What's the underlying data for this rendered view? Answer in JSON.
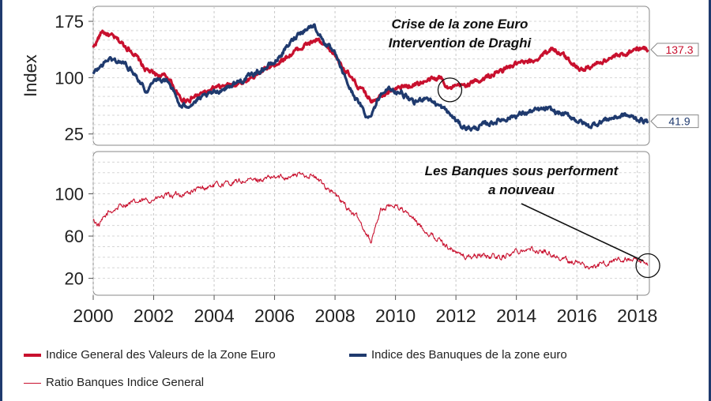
{
  "chart_data": [
    {
      "type": "line",
      "ylabel": "Index",
      "ylim": [
        10,
        195
      ],
      "yticks": [
        25,
        100,
        175
      ],
      "xlim": [
        2000,
        2018.4
      ],
      "grid": true,
      "series": [
        {
          "name": "Indice General des Valeurs de la Zone Euro",
          "color": "#c8102e",
          "x": [
            2000,
            2000.3,
            2000.8,
            2001.3,
            2001.7,
            2002,
            2002.5,
            2002.9,
            2003.2,
            2004,
            2005,
            2006,
            2007,
            2007.4,
            2008,
            2008.6,
            2009.2,
            2009.7,
            2010.3,
            2011,
            2011.5,
            2011.8,
            2012.3,
            2013,
            2014,
            2014.5,
            2015.2,
            2015.7,
            2016.2,
            2017,
            2017.5,
            2018,
            2018.35
          ],
          "values": [
            140,
            162,
            150,
            135,
            112,
            105,
            100,
            70,
            72,
            85,
            95,
            118,
            143,
            150,
            130,
            95,
            70,
            82,
            88,
            95,
            100,
            85,
            90,
            100,
            118,
            120,
            140,
            125,
            110,
            125,
            130,
            140,
            137.3
          ]
        },
        {
          "name": "Indice des Banuques de la zone euro",
          "color": "#1f3a6e",
          "x": [
            2000,
            2000.5,
            2001,
            2001.4,
            2001.8,
            2002,
            2002.5,
            2002.9,
            2003.2,
            2004,
            2005,
            2006,
            2006.8,
            2007.3,
            2007.6,
            2008,
            2008.5,
            2009.1,
            2009.6,
            2010.2,
            2010.6,
            2011,
            2011.7,
            2012.2,
            2012.6,
            2013,
            2014,
            2014.5,
            2015,
            2015.8,
            2016.4,
            2017,
            2017.6,
            2018,
            2018.35
          ],
          "values": [
            105,
            125,
            120,
            105,
            80,
            100,
            95,
            60,
            65,
            80,
            98,
            120,
            160,
            170,
            150,
            130,
            85,
            45,
            85,
            80,
            65,
            75,
            55,
            35,
            32,
            38,
            50,
            55,
            58,
            48,
            35,
            45,
            50,
            45,
            41.9
          ]
        }
      ],
      "end_labels": [
        "137.3",
        "41.9"
      ],
      "annotation": {
        "lines": [
          "Crise de la zone Euro",
          "Intervention de Draghi"
        ],
        "at": [
          2011.8,
          90
        ]
      }
    },
    {
      "type": "line",
      "ylim": [
        4,
        140
      ],
      "yticks": [
        20,
        60,
        100
      ],
      "xlim": [
        2000,
        2018.4
      ],
      "xticks": [
        "2000",
        "2002",
        "2004",
        "2006",
        "2008",
        "2010",
        "2012",
        "2014",
        "2016",
        "2018"
      ],
      "grid": true,
      "series": [
        {
          "name": "Ratio Banques Indice General",
          "color": "#c8102e",
          "x": [
            2000,
            2000.2,
            2000.5,
            2001,
            2001.5,
            2002,
            2002.5,
            2003,
            2004,
            2005,
            2006,
            2006.8,
            2007.2,
            2007.8,
            2008.3,
            2008.8,
            2009.2,
            2009.5,
            2010,
            2010.5,
            2011,
            2011.5,
            2012,
            2012.3,
            2012.8,
            2013.5,
            2014.2,
            2015,
            2015.5,
            2016,
            2016.5,
            2017,
            2017.5,
            2018,
            2018.35
          ],
          "values": [
            75,
            70,
            82,
            90,
            92,
            95,
            98,
            100,
            108,
            112,
            115,
            118,
            118,
            105,
            90,
            75,
            55,
            85,
            90,
            78,
            65,
            55,
            45,
            40,
            42,
            40,
            48,
            45,
            38,
            35,
            30,
            35,
            38,
            35,
            32
          ],
          "ma": true
        }
      ],
      "annotation": {
        "lines": [
          "Les Banques sous performent",
          "a nouveau"
        ],
        "at": [
          2018.35,
          32
        ]
      }
    }
  ],
  "legend": [
    {
      "label": "Indice General des Valeurs de la Zone Euro",
      "color": "#c8102e",
      "weight": "thick"
    },
    {
      "label": "Indice des Banuques de la zone euro",
      "color": "#1f3a6e",
      "weight": "thick"
    },
    {
      "label": "Ratio Banques Indice General",
      "color": "#c8102e",
      "weight": "thin"
    }
  ]
}
